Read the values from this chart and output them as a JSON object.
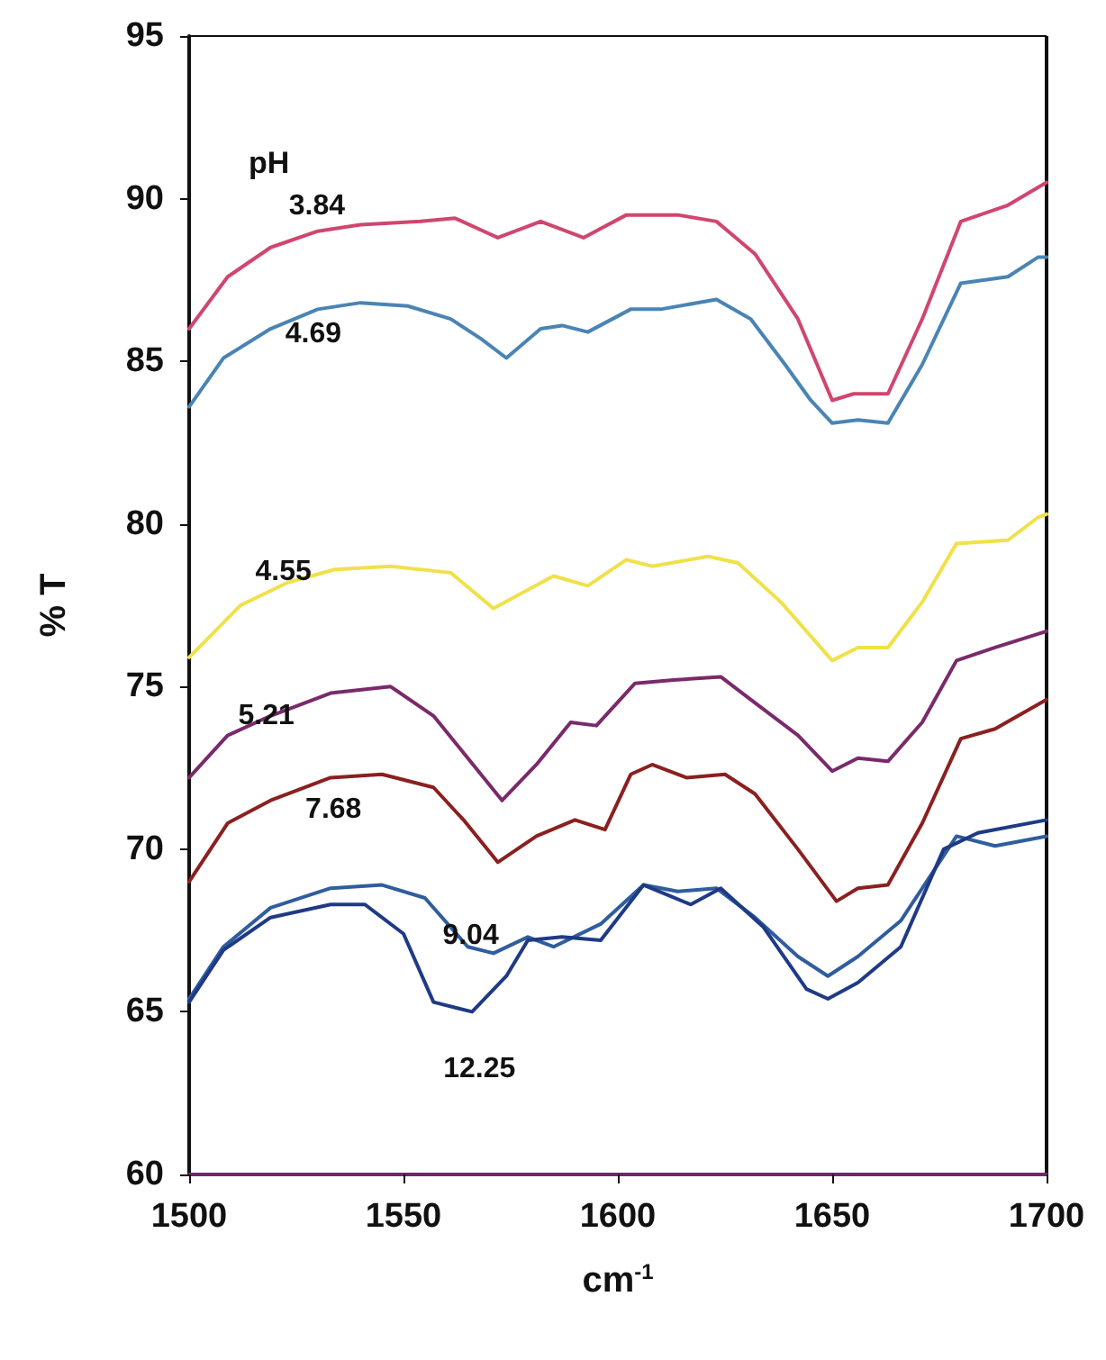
{
  "chart_data": {
    "type": "line",
    "xlabel": "cm$^{-1}$",
    "ylabel": "% T",
    "legend_title": "pH",
    "xlim": [
      1500,
      1700
    ],
    "xticks": [
      1500,
      1550,
      1600,
      1650,
      1700
    ],
    "ylim": [
      60,
      95
    ],
    "yticks": [
      60,
      65,
      70,
      75,
      80,
      85,
      90,
      95
    ],
    "grid": false,
    "legend": false,
    "marker": "none",
    "line_style": "solid",
    "series": [
      {
        "name": "3.84",
        "color": "#d0466e",
        "x": [
          1500,
          1509,
          1519,
          1530,
          1540,
          1554,
          1562,
          1572,
          1582,
          1592,
          1602,
          1614,
          1623,
          1632,
          1642,
          1650,
          1655,
          1663,
          1671,
          1680,
          1691,
          1700
        ],
        "values": [
          86.0,
          87.6,
          88.5,
          89.0,
          89.2,
          89.3,
          89.4,
          88.8,
          89.3,
          88.8,
          89.5,
          89.5,
          89.3,
          88.3,
          86.3,
          83.8,
          84.0,
          84.0,
          86.3,
          89.3,
          89.8,
          90.5
        ]
      },
      {
        "name": "4.69",
        "color": "#4a84b4",
        "x": [
          1500,
          1508,
          1519,
          1530,
          1540,
          1551,
          1561,
          1568,
          1574,
          1582,
          1587,
          1593,
          1603,
          1610,
          1623,
          1631,
          1639,
          1645,
          1650,
          1656,
          1663,
          1671,
          1680,
          1691,
          1698,
          1700
        ],
        "values": [
          83.6,
          85.1,
          86.0,
          86.6,
          86.8,
          86.7,
          86.3,
          85.7,
          85.1,
          86.0,
          86.1,
          85.9,
          86.6,
          86.6,
          86.9,
          86.3,
          84.9,
          83.8,
          83.1,
          83.2,
          83.1,
          84.9,
          87.4,
          87.6,
          88.2,
          88.2
        ]
      },
      {
        "name": "4.55",
        "color": "#f0e14a",
        "x": [
          1500,
          1512,
          1523,
          1534,
          1547,
          1561,
          1571,
          1585,
          1593,
          1602,
          1608,
          1621,
          1628,
          1638,
          1650,
          1656,
          1663,
          1671,
          1679,
          1691,
          1698,
          1700
        ],
        "values": [
          75.9,
          77.5,
          78.2,
          78.6,
          78.7,
          78.5,
          77.4,
          78.4,
          78.1,
          78.9,
          78.7,
          79.0,
          78.8,
          77.6,
          75.8,
          76.2,
          76.2,
          77.6,
          79.4,
          79.5,
          80.2,
          80.3
        ]
      },
      {
        "name": "5.21",
        "color": "#7a2a6a",
        "x": [
          1500,
          1509,
          1519,
          1533,
          1547,
          1557,
          1565,
          1573,
          1581,
          1589,
          1595,
          1604,
          1613,
          1624,
          1632,
          1642,
          1650,
          1656,
          1663,
          1671,
          1679,
          1688,
          1700
        ],
        "values": [
          72.2,
          73.5,
          74.1,
          74.8,
          75.0,
          74.1,
          72.8,
          71.5,
          72.6,
          73.9,
          73.8,
          75.1,
          75.2,
          75.3,
          74.5,
          73.5,
          72.4,
          72.8,
          72.7,
          73.9,
          75.8,
          76.2,
          76.7
        ]
      },
      {
        "name": "7.68",
        "color": "#8b2020",
        "x": [
          1500,
          1509,
          1519,
          1533,
          1545,
          1557,
          1564,
          1572,
          1581,
          1590,
          1597,
          1603,
          1608,
          1616,
          1625,
          1632,
          1642,
          1651,
          1656,
          1663,
          1671,
          1680,
          1688,
          1700
        ],
        "values": [
          69.0,
          70.8,
          71.5,
          72.2,
          72.3,
          71.9,
          70.9,
          69.6,
          70.4,
          70.9,
          70.6,
          72.3,
          72.6,
          72.2,
          72.3,
          71.7,
          70.0,
          68.4,
          68.8,
          68.9,
          70.8,
          73.4,
          73.7,
          74.6
        ]
      },
      {
        "name": "9.04",
        "color": "#2f5d9e",
        "x": [
          1500,
          1508,
          1519,
          1533,
          1545,
          1555,
          1565,
          1571,
          1579,
          1585,
          1596,
          1606,
          1614,
          1623,
          1632,
          1642,
          1649,
          1656,
          1666,
          1679,
          1688,
          1700
        ],
        "values": [
          65.4,
          67.0,
          68.2,
          68.8,
          68.9,
          68.5,
          67.0,
          66.8,
          67.3,
          67.0,
          67.7,
          68.9,
          68.7,
          68.8,
          67.9,
          66.7,
          66.1,
          66.7,
          67.8,
          70.4,
          70.1,
          70.4
        ]
      },
      {
        "name": "12.25",
        "color": "#1f3a85",
        "x": [
          1500,
          1508,
          1519,
          1533,
          1541,
          1550,
          1557,
          1566,
          1574,
          1579,
          1587,
          1596,
          1606,
          1617,
          1624,
          1634,
          1644,
          1649,
          1656,
          1666,
          1676,
          1684,
          1700
        ],
        "values": [
          65.3,
          66.9,
          67.9,
          68.3,
          68.3,
          67.4,
          65.3,
          65.0,
          66.1,
          67.2,
          67.3,
          67.2,
          68.9,
          68.3,
          68.8,
          67.6,
          65.7,
          65.4,
          65.9,
          67.0,
          70.0,
          70.5,
          70.9
        ]
      }
    ]
  }
}
